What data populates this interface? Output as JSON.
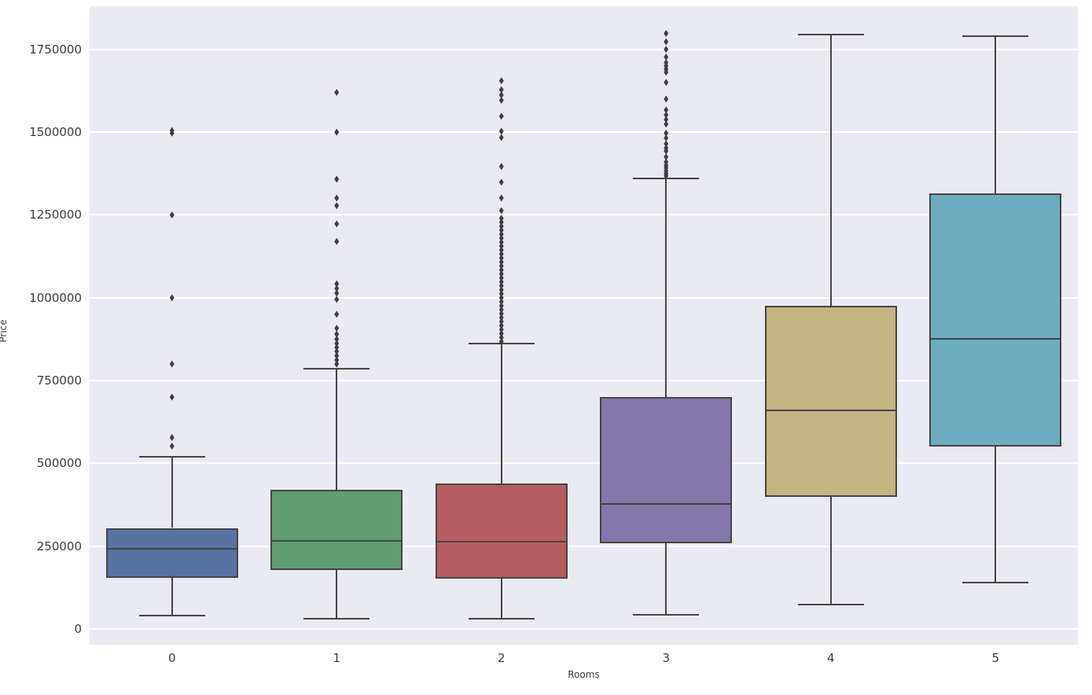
{
  "figure": {
    "background": "#ffffff",
    "plot_background": "#eaeaf2",
    "grid_color": "#ffffff",
    "line_color": "#454545",
    "flier_color": "#3f3f3f",
    "tick_text_color": "#3b3b3b"
  },
  "chart_data": {
    "type": "boxplot",
    "title": "",
    "xlabel": "Rooms",
    "ylabel": "Price",
    "legend": null,
    "grid": true,
    "categories": [
      "0",
      "1",
      "2",
      "3",
      "4",
      "5"
    ],
    "y_ticks": [
      0,
      250000,
      500000,
      750000,
      1000000,
      1250000,
      1500000,
      1750000
    ],
    "ylim": [
      -47500,
      1880000
    ],
    "series": [
      {
        "category": "0",
        "color": "#5872a3",
        "whisker_low": 40000,
        "q1": 155000,
        "median": 241000,
        "q3": 305000,
        "whisker_high": 520000,
        "outliers": [
          552000,
          578000,
          700000,
          800000,
          1000000,
          1250000,
          1497000,
          1505000
        ]
      },
      {
        "category": "1",
        "color": "#5f9e6e",
        "whisker_low": 31000,
        "q1": 178000,
        "median": 265000,
        "q3": 420000,
        "whisker_high": 785000,
        "outliers": [
          800000,
          812000,
          825000,
          838000,
          850000,
          862000,
          875000,
          890000,
          908000,
          950000,
          995000,
          1014000,
          1028000,
          1042000,
          1170000,
          1223000,
          1278000,
          1301000,
          1358000,
          1500000,
          1620000
        ]
      },
      {
        "category": "2",
        "color": "#b55d61",
        "whisker_low": 32000,
        "q1": 152000,
        "median": 263000,
        "q3": 440000,
        "whisker_high": 862000,
        "outliers": [
          868000,
          880000,
          892000,
          904000,
          916000,
          928000,
          940000,
          952000,
          964000,
          976000,
          988000,
          1000000,
          1012000,
          1024000,
          1036000,
          1048000,
          1060000,
          1072000,
          1084000,
          1096000,
          1108000,
          1120000,
          1132000,
          1144000,
          1156000,
          1168000,
          1180000,
          1192000,
          1204000,
          1216000,
          1228000,
          1240000,
          1263000,
          1301000,
          1349000,
          1396000,
          1484000,
          1503000,
          1548000,
          1596000,
          1612000,
          1628000,
          1655000
        ]
      },
      {
        "category": "3",
        "color": "#8578ab",
        "whisker_low": 42000,
        "q1": 258000,
        "median": 378000,
        "q3": 700000,
        "whisker_high": 1360000,
        "outliers": [
          1368000,
          1375000,
          1383000,
          1392000,
          1400000,
          1410000,
          1425000,
          1443000,
          1452000,
          1465000,
          1482000,
          1497000,
          1524000,
          1538000,
          1552000,
          1567000,
          1600000,
          1650000,
          1681000,
          1690000,
          1700000,
          1710000,
          1727000,
          1750000,
          1773000,
          1798000
        ]
      },
      {
        "category": "4",
        "color": "#c3b480",
        "whisker_low": 73000,
        "q1": 398000,
        "median": 660000,
        "q3": 975000,
        "whisker_high": 1795000,
        "outliers": []
      },
      {
        "category": "5",
        "color": "#6eacbf",
        "whisker_low": 140000,
        "q1": 550000,
        "median": 875000,
        "q3": 1315000,
        "whisker_high": 1789000,
        "outliers": []
      }
    ]
  }
}
